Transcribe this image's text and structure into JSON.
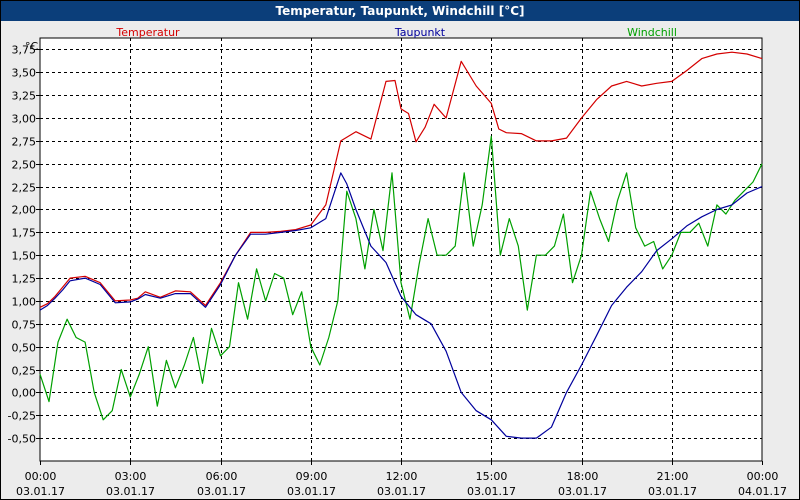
{
  "window": {
    "title": "Temperatur, Taupunkt, Windchill [°C]"
  },
  "colors": {
    "titlebar": "#0b3e7a",
    "temperatur": "#d40000",
    "taupunkt": "#00009c",
    "windchill": "#00a000",
    "grid": "#000000",
    "plot_bg": "#ffffff",
    "window_bg": "#ececec"
  },
  "chart_data": {
    "type": "line",
    "title": "Temperatur, Taupunkt, Windchill [°C]",
    "ylabel": "°C",
    "ylim": [
      -0.75,
      3.875
    ],
    "xlim": [
      0,
      24
    ],
    "grid": true,
    "legend_placement": "top",
    "y_ticks": [
      {
        "value": 3.75,
        "label": "3,75"
      },
      {
        "value": 3.5,
        "label": "3,50"
      },
      {
        "value": 3.25,
        "label": "3,25"
      },
      {
        "value": 3.0,
        "label": "3,00"
      },
      {
        "value": 2.75,
        "label": "2,75"
      },
      {
        "value": 2.5,
        "label": "2,50"
      },
      {
        "value": 2.25,
        "label": "2,25"
      },
      {
        "value": 2.0,
        "label": "2,00"
      },
      {
        "value": 1.75,
        "label": "1,75"
      },
      {
        "value": 1.5,
        "label": "1,50"
      },
      {
        "value": 1.25,
        "label": "1,25"
      },
      {
        "value": 1.0,
        "label": "1,00"
      },
      {
        "value": 0.75,
        "label": "0,75"
      },
      {
        "value": 0.5,
        "label": "0,50"
      },
      {
        "value": 0.25,
        "label": "0,25"
      },
      {
        "value": 0.0,
        "label": "0,00"
      },
      {
        "value": -0.25,
        "label": "-0,25"
      },
      {
        "value": -0.5,
        "label": "-0,50"
      }
    ],
    "x_ticks": [
      {
        "value": 0,
        "time": "00:00",
        "date": "03.01.17"
      },
      {
        "value": 3,
        "time": "03:00",
        "date": "03.01.17"
      },
      {
        "value": 6,
        "time": "06:00",
        "date": "03.01.17"
      },
      {
        "value": 9,
        "time": "09:00",
        "date": "03.01.17"
      },
      {
        "value": 12,
        "time": "12:00",
        "date": "03.01.17"
      },
      {
        "value": 15,
        "time": "15:00",
        "date": "03.01.17"
      },
      {
        "value": 18,
        "time": "18:00",
        "date": "03.01.17"
      },
      {
        "value": 21,
        "time": "21:00",
        "date": "03.01.17"
      },
      {
        "value": 24,
        "time": "00:00",
        "date": "04.01.17"
      }
    ],
    "series": [
      {
        "name": "Temperatur",
        "color": "#d40000",
        "x": [
          0,
          0.25,
          0.5,
          0.75,
          1,
          1.5,
          2,
          2.5,
          3,
          3.25,
          3.5,
          4,
          4.5,
          5,
          5.5,
          6,
          6.5,
          7,
          7.5,
          8,
          8.5,
          9,
          9.5,
          10,
          10.5,
          11,
          11.5,
          11.8,
          12,
          12.25,
          12.5,
          12.8,
          13.1,
          13.5,
          14,
          14.5,
          15,
          15.25,
          15.5,
          16,
          16.5,
          17,
          17.5,
          18,
          18.5,
          19,
          19.5,
          20,
          20.5,
          21,
          21.5,
          22,
          22.5,
          23,
          23.5,
          24
        ],
        "y": [
          0.93,
          0.97,
          1.05,
          1.15,
          1.25,
          1.27,
          1.2,
          1.0,
          1.01,
          1.03,
          1.1,
          1.04,
          1.11,
          1.1,
          0.95,
          1.2,
          1.5,
          1.75,
          1.75,
          1.76,
          1.78,
          1.83,
          2.05,
          2.75,
          2.85,
          2.77,
          3.4,
          3.41,
          3.1,
          3.05,
          2.74,
          2.9,
          3.15,
          3.0,
          3.62,
          3.35,
          3.16,
          2.88,
          2.84,
          2.83,
          2.75,
          2.75,
          2.78,
          3.0,
          3.2,
          3.35,
          3.4,
          3.35,
          3.38,
          3.4,
          3.52,
          3.65,
          3.7,
          3.72,
          3.7,
          3.65
        ]
      },
      {
        "name": "Taupunkt",
        "color": "#00009c",
        "x": [
          0,
          0.25,
          0.5,
          0.75,
          1,
          1.5,
          2,
          2.5,
          3,
          3.25,
          3.5,
          4,
          4.5,
          5,
          5.5,
          6,
          6.5,
          7,
          7.5,
          8,
          8.5,
          9,
          9.5,
          10,
          10.2,
          10.5,
          11,
          11.5,
          12,
          12.5,
          13,
          13.5,
          14,
          14.5,
          15,
          15.5,
          16,
          16.5,
          17,
          17.5,
          18,
          18.5,
          19,
          19.5,
          20,
          20.5,
          21,
          21.5,
          22,
          22.5,
          23,
          23.5,
          24
        ],
        "y": [
          0.9,
          0.95,
          1.03,
          1.12,
          1.22,
          1.25,
          1.18,
          0.98,
          0.99,
          1.02,
          1.07,
          1.03,
          1.08,
          1.08,
          0.93,
          1.18,
          1.5,
          1.73,
          1.73,
          1.75,
          1.77,
          1.8,
          1.9,
          2.4,
          2.28,
          2.0,
          1.6,
          1.42,
          1.05,
          0.85,
          0.75,
          0.45,
          0.0,
          -0.2,
          -0.3,
          -0.48,
          -0.5,
          -0.5,
          -0.38,
          0.0,
          0.3,
          0.62,
          0.95,
          1.15,
          1.32,
          1.55,
          1.68,
          1.82,
          1.92,
          2.0,
          2.05,
          2.18,
          2.25
        ]
      },
      {
        "name": "Windchill",
        "color": "#00a000",
        "x": [
          0,
          0.3,
          0.6,
          0.9,
          1.2,
          1.5,
          1.8,
          2.1,
          2.4,
          2.7,
          3.0,
          3.3,
          3.6,
          3.9,
          4.2,
          4.5,
          4.8,
          5.1,
          5.4,
          5.7,
          6.0,
          6.3,
          6.6,
          6.9,
          7.2,
          7.5,
          7.8,
          8.1,
          8.4,
          8.7,
          9.0,
          9.3,
          9.6,
          9.9,
          10.2,
          10.5,
          10.8,
          11.1,
          11.4,
          11.7,
          12.0,
          12.3,
          12.6,
          12.9,
          13.2,
          13.5,
          13.8,
          14.1,
          14.4,
          14.7,
          15.0,
          15.3,
          15.6,
          15.9,
          16.2,
          16.5,
          16.8,
          17.1,
          17.4,
          17.7,
          18.0,
          18.3,
          18.6,
          18.9,
          19.2,
          19.5,
          19.8,
          20.1,
          20.4,
          20.7,
          21.0,
          21.3,
          21.6,
          21.9,
          22.2,
          22.5,
          22.8,
          23.1,
          23.4,
          23.7,
          24.0
        ],
        "y": [
          0.2,
          -0.1,
          0.55,
          0.8,
          0.6,
          0.55,
          0.0,
          -0.3,
          -0.2,
          0.25,
          -0.05,
          0.2,
          0.5,
          -0.15,
          0.35,
          0.05,
          0.3,
          0.6,
          0.1,
          0.7,
          0.4,
          0.5,
          1.2,
          0.8,
          1.35,
          1.0,
          1.3,
          1.25,
          0.85,
          1.1,
          0.5,
          0.3,
          0.6,
          1.0,
          2.2,
          1.9,
          1.35,
          2.0,
          1.55,
          2.4,
          1.2,
          0.8,
          1.4,
          1.9,
          1.5,
          1.5,
          1.6,
          2.4,
          1.6,
          2.05,
          2.8,
          1.5,
          1.9,
          1.6,
          0.9,
          1.5,
          1.5,
          1.6,
          1.95,
          1.2,
          1.5,
          2.2,
          1.9,
          1.65,
          2.1,
          2.4,
          1.8,
          1.6,
          1.65,
          1.35,
          1.5,
          1.75,
          1.75,
          1.85,
          1.6,
          2.05,
          1.95,
          2.1,
          2.2,
          2.3,
          2.5
        ]
      }
    ]
  }
}
